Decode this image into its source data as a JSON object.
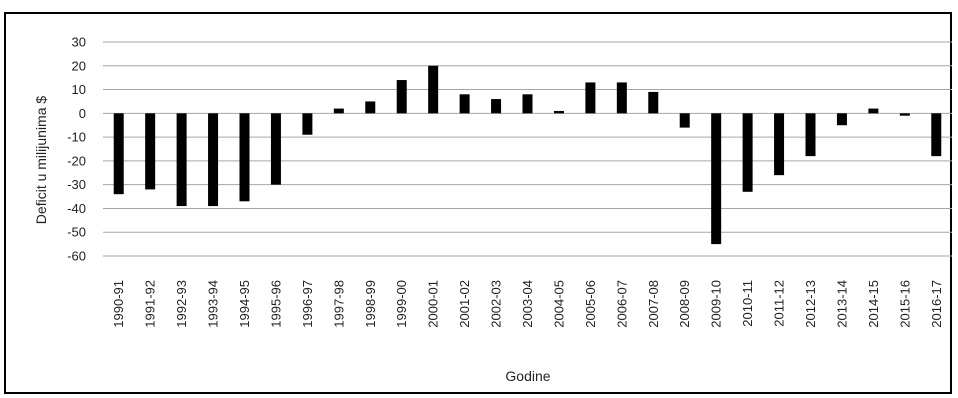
{
  "chart_data": {
    "type": "bar",
    "title": "",
    "xlabel": "Godine",
    "ylabel": "Deficit u milijunima $",
    "ylim": [
      -60,
      30
    ],
    "yticks": [
      30,
      20,
      10,
      0,
      -10,
      -20,
      -30,
      -40,
      -50,
      -60
    ],
    "grid": true,
    "legend": "none",
    "bar_color": "#000000",
    "grid_color": "#a6a6a6",
    "categories": [
      "1990-91",
      "1991-92",
      "1992-93",
      "1993-94",
      "1994-95",
      "1995-96",
      "1996-97",
      "1997-98",
      "1998-99",
      "1999-00",
      "2000-01",
      "2001-02",
      "2002-03",
      "2003-04",
      "2004-05",
      "2005-06",
      "2006-07",
      "2007-08",
      "2008-09",
      "2009-10",
      "2010-11",
      "2011-12",
      "2012-13",
      "2013-14",
      "2014-15",
      "2015-16",
      "2016-17"
    ],
    "values": [
      -34,
      -32,
      -39,
      -39,
      -37,
      -30,
      -9,
      2,
      5,
      14,
      20,
      8,
      6,
      8,
      1,
      13,
      13,
      9,
      -6,
      -55,
      -33,
      -26,
      -18,
      -5,
      2,
      -1,
      -18
    ]
  }
}
